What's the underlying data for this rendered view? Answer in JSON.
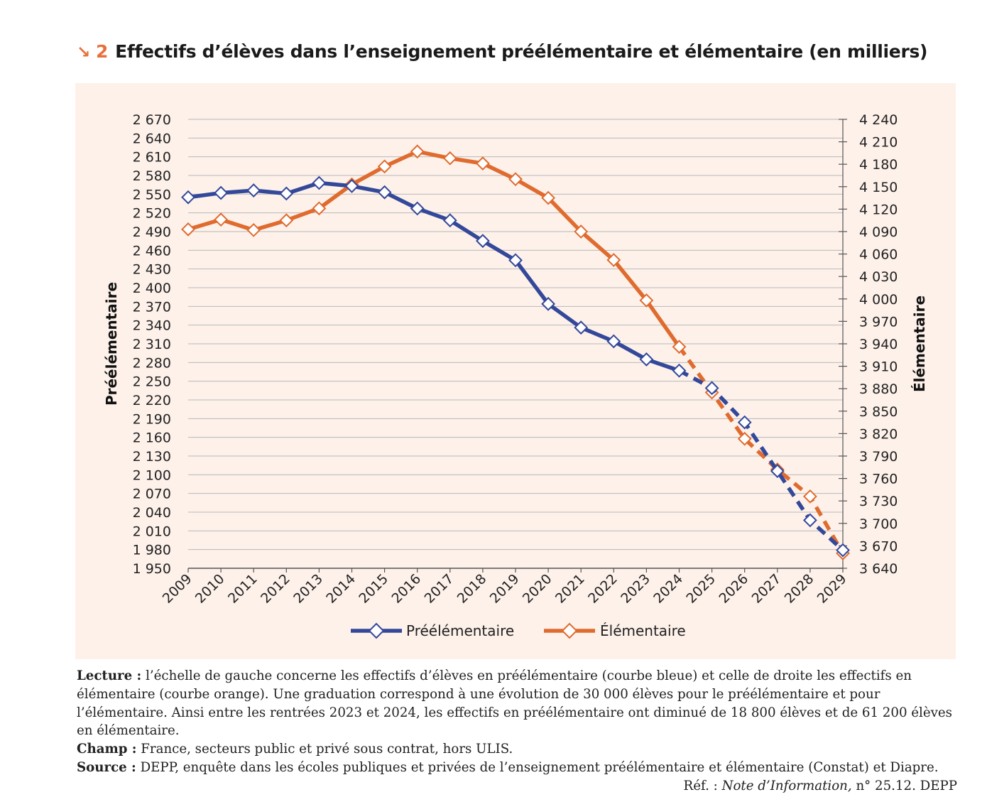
{
  "figure": {
    "arrow": "↘",
    "number": "2",
    "title": "Effectifs d’élèves dans l’enseignement préélémentaire et élémentaire (en milliers)"
  },
  "notes": {
    "lecture_label": "Lecture :",
    "lecture_text": "l’échelle de gauche concerne les effectifs d’élèves en préélémentaire (courbe bleue) et celle de droite les effectifs en élémentaire (courbe orange). Une graduation correspond à une évolution de 30 000 élèves pour le préélémentaire et pour l’élémentaire. Ainsi entre les rentrées 2023 et 2024, les effectifs en préélémentaire ont diminué de 18 800 élèves et de 61 200 élèves en élémentaire.",
    "champ_label": "Champ :",
    "champ_text": "France, secteurs public et privé sous contrat, hors ULIS.",
    "source_label": "Source :",
    "source_text": "DEPP, enquête dans les écoles publiques et privées de l’enseignement préélémentaire et élémentaire (Constat) et Diapre.",
    "ref_prefix": "Réf. :",
    "ref_italic": "Note d’Information,",
    "ref_suffix": "n° 25.12. DEPP"
  },
  "chart_data": {
    "type": "line",
    "title": "Effectifs d’élèves dans l’enseignement préélémentaire et élémentaire (en milliers)",
    "x": [
      "2009",
      "2010",
      "2011",
      "2012",
      "2013",
      "2014",
      "2015",
      "2016",
      "2017",
      "2018",
      "2019",
      "2020",
      "2021",
      "2022",
      "2023",
      "2024",
      "2025",
      "2026",
      "2027",
      "2028",
      "2029"
    ],
    "ylabel_left": "Préélémentaire",
    "ylabel_right": "Élémentaire",
    "ylim_left": [
      1950,
      2670
    ],
    "ylim_right": [
      3640,
      4240
    ],
    "yticks_left": [
      "2 670",
      "2 640",
      "2 610",
      "2 580",
      "2 550",
      "2 520",
      "2 490",
      "2 460",
      "2 430",
      "2 400",
      "2 370",
      "2 340",
      "2 310",
      "2 280",
      "2 250",
      "2 220",
      "2 190",
      "2 160",
      "2 130",
      "2 100",
      "2 070",
      "2 040",
      "2 010",
      "1 980",
      "1 950"
    ],
    "yticks_right": [
      "4 240",
      "4 210",
      "4 180",
      "4 150",
      "4 120",
      "4 090",
      "4 060",
      "4 030",
      "4 000",
      "3 970",
      "3 940",
      "3 910",
      "3 880",
      "3 850",
      "3 820",
      "3 790",
      "3 760",
      "3 730",
      "3 700",
      "3 670",
      "3 640"
    ],
    "grid": true,
    "legend_position": "bottom",
    "projection_from": "2024",
    "series": [
      {
        "name": "Préélémentaire",
        "axis": "left",
        "color": "#34489a",
        "values": [
          2545,
          2552,
          2556,
          2551,
          2568,
          2563,
          2553,
          2527,
          2508,
          2475,
          2444,
          2374,
          2336,
          2314,
          2285,
          2267,
          2239,
          2184,
          2106,
          2027,
          1979
        ]
      },
      {
        "name": "Élémentaire",
        "axis": "right",
        "color": "#e06b2e",
        "values": [
          4093,
          4106,
          4092,
          4105,
          4121,
          4153,
          4177,
          4197,
          4188,
          4181,
          4160,
          4135,
          4090,
          4052,
          3998,
          3936,
          3875,
          3813,
          3772,
          3736,
          3660
        ]
      }
    ]
  }
}
